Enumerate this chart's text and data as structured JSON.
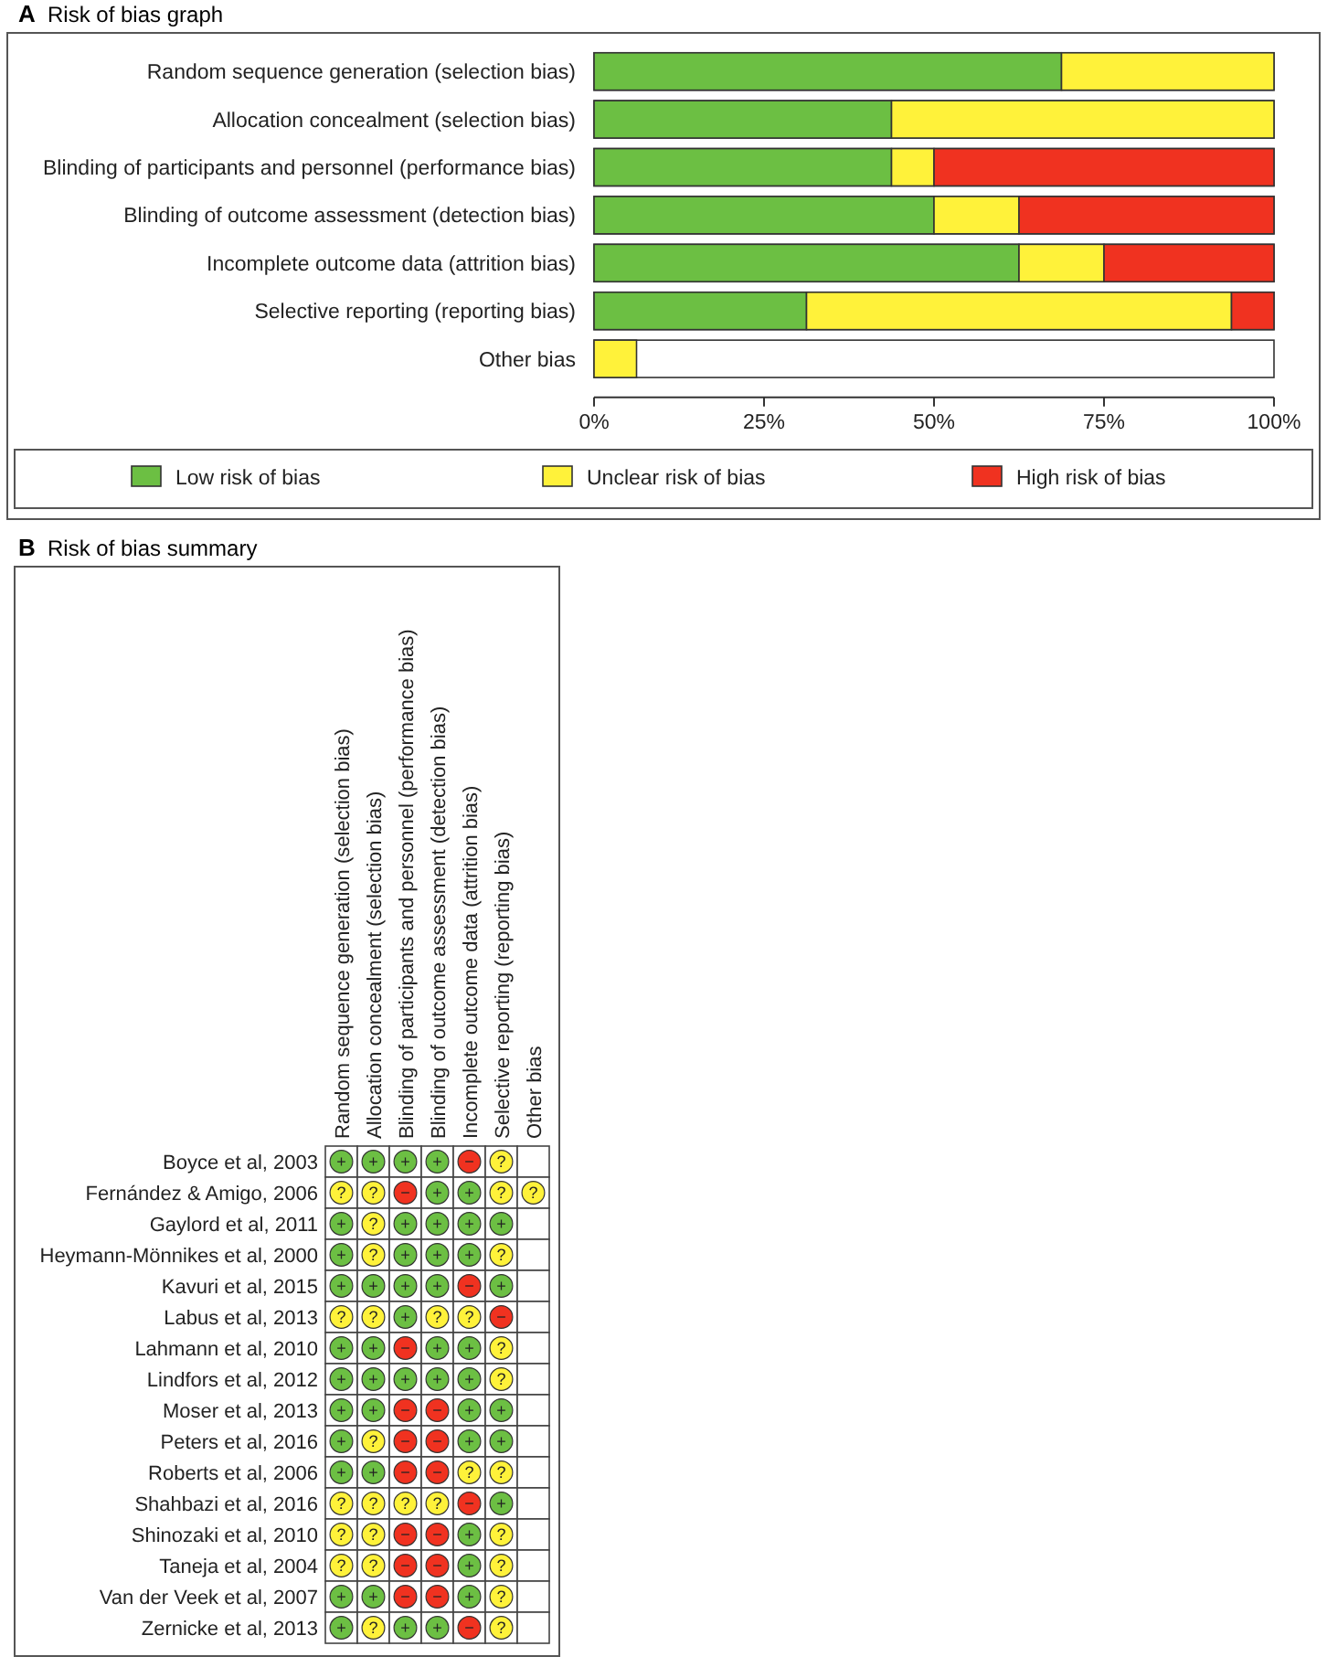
{
  "chart_data": [
    {
      "type": "bar",
      "title": "Risk of bias graph",
      "annotations": [
        "A"
      ],
      "orientation": "horizontal",
      "stacked": true,
      "legend": "bottom",
      "grid": false,
      "categories": [
        "Random sequence generation (selection bias)",
        "Allocation concealment (selection bias)",
        "Blinding of participants and personnel (performance bias)",
        "Blinding of outcome assessment (detection bias)",
        "Incomplete outcome data (attrition bias)",
        "Selective reporting (reporting bias)",
        "Other bias"
      ],
      "series": [
        {
          "name": "Low risk of bias",
          "color": "#6cbf43",
          "values": [
            68.75,
            43.75,
            43.75,
            50,
            62.5,
            31.25,
            null
          ]
        },
        {
          "name": "Unclear risk of bias",
          "color": "#fff23a",
          "values": [
            31.25,
            56.25,
            6.25,
            12.5,
            12.5,
            62.5,
            6.25
          ]
        },
        {
          "name": "High risk of bias",
          "color": "#f03220",
          "values": [
            null,
            null,
            50,
            37.5,
            25,
            6.25,
            null
          ]
        }
      ],
      "xlim": [
        0,
        100
      ],
      "xticks": [
        {
          "value": 0,
          "label": "0%"
        },
        {
          "value": 25,
          "label": "25%"
        },
        {
          "value": 50,
          "label": "50%"
        },
        {
          "value": 75,
          "label": "75%"
        },
        {
          "value": 100,
          "label": "100%"
        }
      ]
    },
    {
      "type": "heatmap",
      "title": "Risk of bias summary",
      "annotations": [
        "B"
      ],
      "categories": [
        "Random sequence generation (selection bias)",
        "Allocation concealment (selection bias)",
        "Blinding of participants and personnel (performance bias)",
        "Blinding of outcome assessment (detection bias)",
        "Incomplete outcome data (attrition bias)",
        "Selective reporting (reporting bias)",
        "Other bias"
      ],
      "y_categories": [
        "Boyce et al, 2003",
        "Fernández & Amigo, 2006",
        "Gaylord et al, 2011",
        "Heymann-Mönnikes et al, 2000",
        "Kavuri et al, 2015",
        "Labus et al, 2013",
        "Lahmann et al, 2010",
        "Lindfors et al, 2012",
        "Moser et al, 2013",
        "Peters et al, 2016",
        "Roberts et al, 2006",
        "Shahbazi et al, 2016",
        "Shinozaki et al, 2010",
        "Taneja et al, 2004",
        "Van der Veek et al, 2007",
        "Zernicke et al, 2013"
      ],
      "cells": [
        [
          "+",
          "+",
          "+",
          "+",
          "−",
          "?",
          null
        ],
        [
          "?",
          "?",
          "−",
          "+",
          "+",
          "?",
          "?"
        ],
        [
          "+",
          "?",
          "+",
          "+",
          "+",
          "+",
          null
        ],
        [
          "+",
          "?",
          "+",
          "+",
          "+",
          "?",
          null
        ],
        [
          "+",
          "+",
          "+",
          "+",
          "−",
          "+",
          null
        ],
        [
          "?",
          "?",
          "+",
          "?",
          "?",
          "−",
          null
        ],
        [
          "+",
          "+",
          "−",
          "+",
          "+",
          "?",
          null
        ],
        [
          "+",
          "+",
          "+",
          "+",
          "+",
          "?",
          null
        ],
        [
          "+",
          "+",
          "−",
          "−",
          "+",
          "+",
          null
        ],
        [
          "+",
          "?",
          "−",
          "−",
          "+",
          "+",
          null
        ],
        [
          "+",
          "+",
          "−",
          "−",
          "?",
          "?",
          null
        ],
        [
          "?",
          "?",
          "?",
          "?",
          "−",
          "+",
          null
        ],
        [
          "?",
          "?",
          "−",
          "−",
          "+",
          "?",
          null
        ],
        [
          "?",
          "?",
          "−",
          "−",
          "+",
          "?",
          null
        ],
        [
          "+",
          "+",
          "−",
          "−",
          "+",
          "?",
          null
        ],
        [
          "+",
          "?",
          "+",
          "+",
          "−",
          "?",
          null
        ]
      ],
      "colors": [
        [
          "#6cbf43",
          "#6cbf43",
          "#6cbf43",
          "#6cbf43",
          "#f03220",
          "#fff23a",
          null
        ],
        [
          "#fff23a",
          "#fff23a",
          "#f03220",
          "#6cbf43",
          "#6cbf43",
          "#fff23a",
          "#fff23a"
        ],
        [
          "#6cbf43",
          "#fff23a",
          "#6cbf43",
          "#6cbf43",
          "#6cbf43",
          "#6cbf43",
          null
        ],
        [
          "#6cbf43",
          "#fff23a",
          "#6cbf43",
          "#6cbf43",
          "#6cbf43",
          "#fff23a",
          null
        ],
        [
          "#6cbf43",
          "#6cbf43",
          "#6cbf43",
          "#6cbf43",
          "#f03220",
          "#6cbf43",
          null
        ],
        [
          "#fff23a",
          "#fff23a",
          "#6cbf43",
          "#fff23a",
          "#fff23a",
          "#f03220",
          null
        ],
        [
          "#6cbf43",
          "#6cbf43",
          "#f03220",
          "#6cbf43",
          "#6cbf43",
          "#fff23a",
          null
        ],
        [
          "#6cbf43",
          "#6cbf43",
          "#6cbf43",
          "#6cbf43",
          "#6cbf43",
          "#fff23a",
          null
        ],
        [
          "#6cbf43",
          "#6cbf43",
          "#f03220",
          "#f03220",
          "#6cbf43",
          "#6cbf43",
          null
        ],
        [
          "#6cbf43",
          "#fff23a",
          "#f03220",
          "#f03220",
          "#6cbf43",
          "#6cbf43",
          null
        ],
        [
          "#6cbf43",
          "#6cbf43",
          "#f03220",
          "#f03220",
          "#fff23a",
          "#fff23a",
          null
        ],
        [
          "#fff23a",
          "#fff23a",
          "#fff23a",
          "#fff23a",
          "#f03220",
          "#6cbf43",
          null
        ],
        [
          "#fff23a",
          "#fff23a",
          "#f03220",
          "#f03220",
          "#6cbf43",
          "#fff23a",
          null
        ],
        [
          "#fff23a",
          "#fff23a",
          "#f03220",
          "#f03220",
          "#6cbf43",
          "#fff23a",
          null
        ],
        [
          "#6cbf43",
          "#6cbf43",
          "#f03220",
          "#f03220",
          "#6cbf43",
          "#fff23a",
          null
        ],
        [
          "#6cbf43",
          "#fff23a",
          "#6cbf43",
          "#6cbf43",
          "#f03220",
          "#fff23a",
          null
        ]
      ]
    }
  ]
}
